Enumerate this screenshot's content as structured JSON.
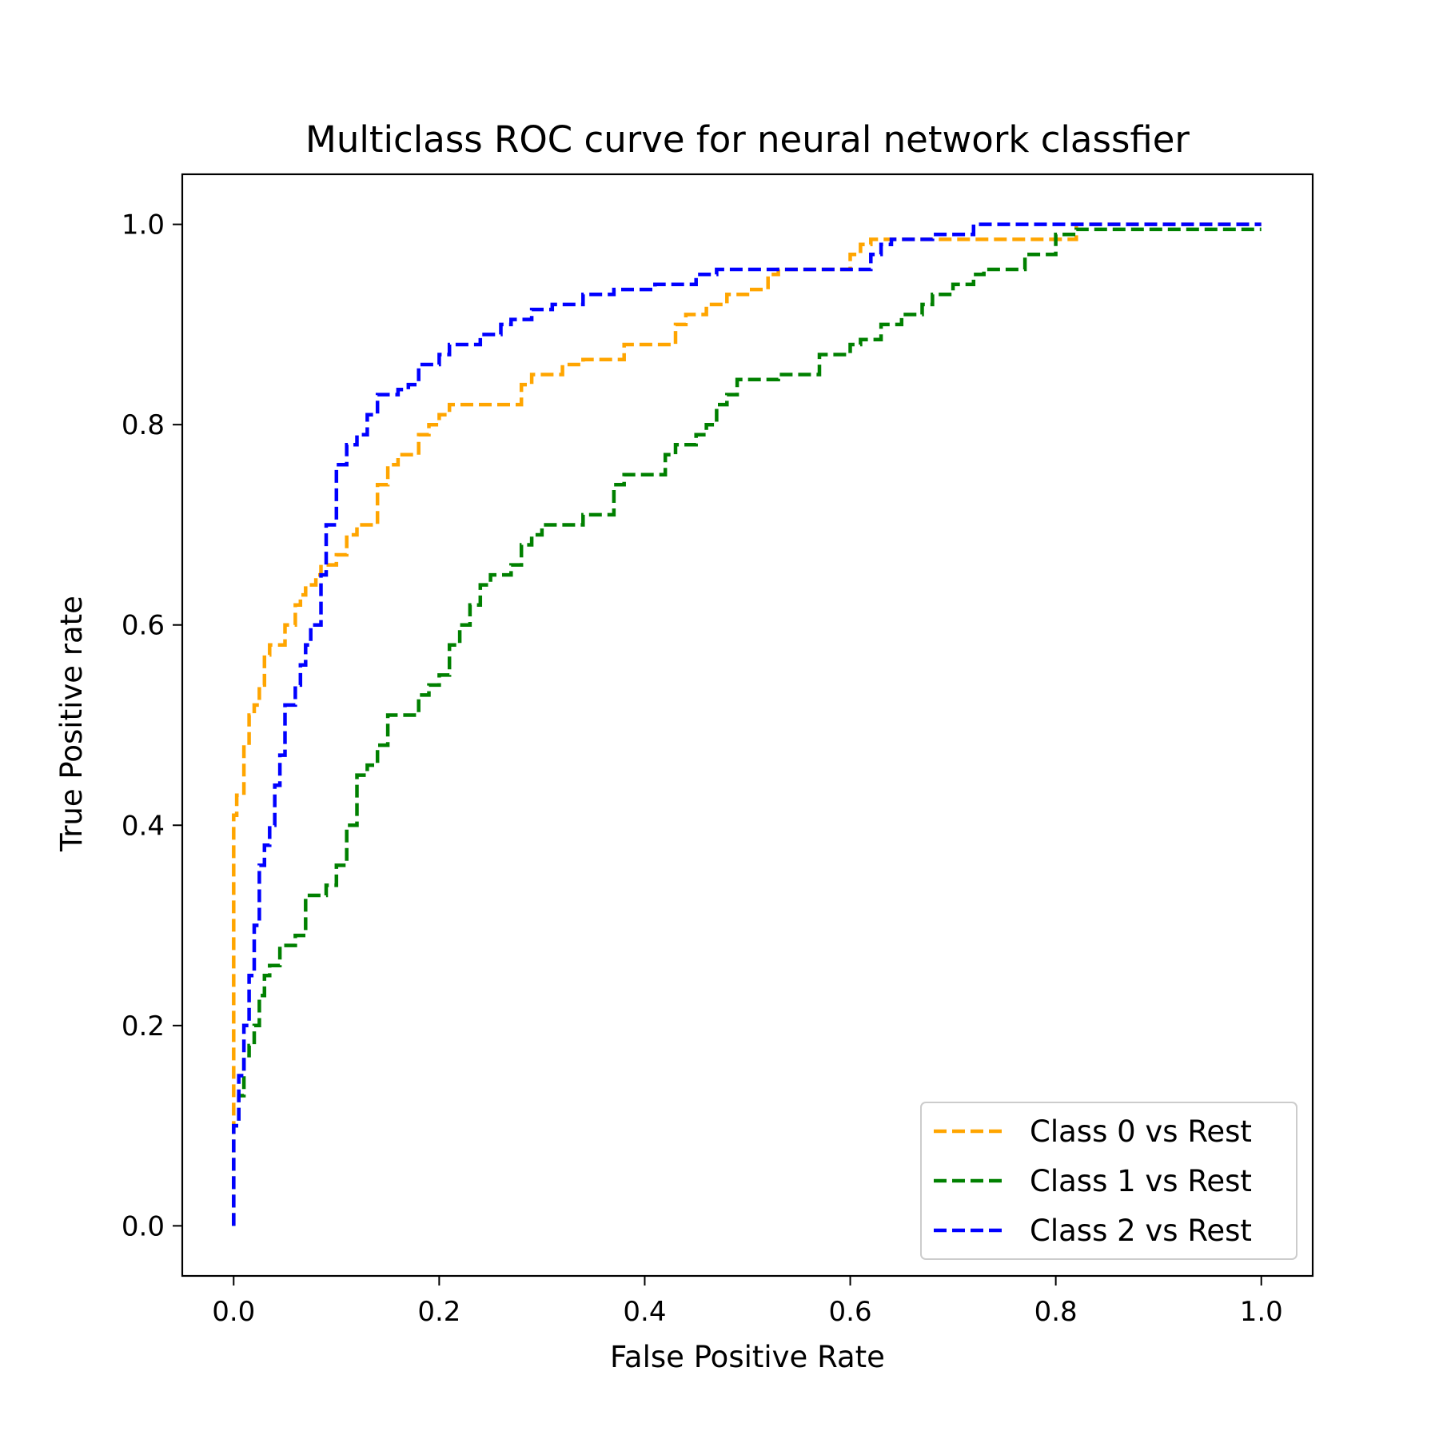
{
  "chart_data": {
    "type": "line",
    "title": "Multiclass ROC curve for neural network classfier",
    "xlabel": "False Positive Rate",
    "ylabel": "True Positive rate",
    "xlim": [
      -0.05,
      1.05
    ],
    "ylim": [
      -0.05,
      1.05
    ],
    "xticks": [
      0.0,
      0.2,
      0.4,
      0.6,
      0.8,
      1.0
    ],
    "xtick_labels": [
      "0.0",
      "0.2",
      "0.4",
      "0.6",
      "0.8",
      "1.0"
    ],
    "yticks": [
      0.0,
      0.2,
      0.4,
      0.6,
      0.8,
      1.0
    ],
    "ytick_labels": [
      "0.0",
      "0.2",
      "0.4",
      "0.6",
      "0.8",
      "1.0"
    ],
    "grid": false,
    "legend_position": "bottom-right",
    "line_style": "dashed",
    "series": [
      {
        "name": "Class 0 vs Rest",
        "color": "#ffa500",
        "x": [
          0.0,
          0.0,
          0.003,
          0.003,
          0.01,
          0.01,
          0.015,
          0.015,
          0.02,
          0.02,
          0.025,
          0.025,
          0.03,
          0.03,
          0.035,
          0.035,
          0.04,
          0.04,
          0.05,
          0.05,
          0.06,
          0.06,
          0.065,
          0.065,
          0.07,
          0.07,
          0.08,
          0.08,
          0.085,
          0.085,
          0.1,
          0.1,
          0.11,
          0.11,
          0.12,
          0.12,
          0.14,
          0.14,
          0.15,
          0.15,
          0.16,
          0.16,
          0.18,
          0.18,
          0.19,
          0.19,
          0.2,
          0.2,
          0.21,
          0.21,
          0.22,
          0.22,
          0.28,
          0.28,
          0.29,
          0.29,
          0.32,
          0.32,
          0.34,
          0.34,
          0.38,
          0.38,
          0.43,
          0.43,
          0.44,
          0.44,
          0.46,
          0.46,
          0.48,
          0.48,
          0.5,
          0.5,
          0.52,
          0.52,
          0.53,
          0.53,
          0.6,
          0.6,
          0.61,
          0.61,
          0.62,
          0.62,
          0.82,
          0.82,
          1.0
        ],
        "y": [
          0.0,
          0.41,
          0.41,
          0.43,
          0.43,
          0.48,
          0.48,
          0.51,
          0.51,
          0.52,
          0.52,
          0.54,
          0.54,
          0.57,
          0.57,
          0.58,
          0.58,
          0.58,
          0.58,
          0.6,
          0.6,
          0.62,
          0.62,
          0.63,
          0.63,
          0.64,
          0.64,
          0.65,
          0.65,
          0.66,
          0.66,
          0.67,
          0.67,
          0.69,
          0.69,
          0.7,
          0.7,
          0.74,
          0.74,
          0.76,
          0.76,
          0.77,
          0.77,
          0.79,
          0.79,
          0.8,
          0.8,
          0.81,
          0.81,
          0.82,
          0.82,
          0.82,
          0.82,
          0.84,
          0.84,
          0.85,
          0.85,
          0.86,
          0.86,
          0.865,
          0.865,
          0.88,
          0.88,
          0.9,
          0.9,
          0.91,
          0.91,
          0.92,
          0.92,
          0.93,
          0.93,
          0.935,
          0.935,
          0.95,
          0.95,
          0.955,
          0.955,
          0.97,
          0.97,
          0.98,
          0.98,
          0.985,
          0.985,
          1.0,
          1.0
        ]
      },
      {
        "name": "Class 1 vs Rest",
        "color": "#008000",
        "x": [
          0.0,
          0.0,
          0.005,
          0.005,
          0.01,
          0.01,
          0.015,
          0.015,
          0.02,
          0.02,
          0.025,
          0.025,
          0.03,
          0.03,
          0.035,
          0.035,
          0.045,
          0.045,
          0.06,
          0.06,
          0.07,
          0.07,
          0.09,
          0.09,
          0.1,
          0.1,
          0.11,
          0.11,
          0.12,
          0.12,
          0.13,
          0.13,
          0.14,
          0.14,
          0.15,
          0.15,
          0.18,
          0.18,
          0.19,
          0.19,
          0.2,
          0.2,
          0.21,
          0.21,
          0.22,
          0.22,
          0.23,
          0.23,
          0.24,
          0.24,
          0.25,
          0.25,
          0.27,
          0.27,
          0.28,
          0.28,
          0.29,
          0.29,
          0.3,
          0.3,
          0.34,
          0.34,
          0.37,
          0.37,
          0.38,
          0.38,
          0.42,
          0.42,
          0.43,
          0.43,
          0.45,
          0.45,
          0.46,
          0.46,
          0.47,
          0.47,
          0.48,
          0.48,
          0.49,
          0.49,
          0.53,
          0.53,
          0.57,
          0.57,
          0.6,
          0.6,
          0.61,
          0.61,
          0.63,
          0.63,
          0.65,
          0.65,
          0.67,
          0.67,
          0.68,
          0.68,
          0.7,
          0.7,
          0.72,
          0.72,
          0.73,
          0.73,
          0.77,
          0.77,
          0.8,
          0.8,
          0.82,
          0.82,
          1.0
        ],
        "y": [
          0.0,
          0.1,
          0.1,
          0.13,
          0.13,
          0.17,
          0.17,
          0.18,
          0.18,
          0.2,
          0.2,
          0.23,
          0.23,
          0.25,
          0.25,
          0.26,
          0.26,
          0.28,
          0.28,
          0.29,
          0.29,
          0.33,
          0.33,
          0.34,
          0.34,
          0.36,
          0.36,
          0.4,
          0.4,
          0.45,
          0.45,
          0.46,
          0.46,
          0.48,
          0.48,
          0.51,
          0.51,
          0.53,
          0.53,
          0.54,
          0.54,
          0.55,
          0.55,
          0.58,
          0.58,
          0.6,
          0.6,
          0.62,
          0.62,
          0.64,
          0.64,
          0.65,
          0.65,
          0.66,
          0.66,
          0.68,
          0.68,
          0.69,
          0.69,
          0.7,
          0.7,
          0.71,
          0.71,
          0.74,
          0.74,
          0.75,
          0.75,
          0.77,
          0.77,
          0.78,
          0.78,
          0.79,
          0.79,
          0.8,
          0.8,
          0.82,
          0.82,
          0.83,
          0.83,
          0.845,
          0.845,
          0.85,
          0.85,
          0.87,
          0.87,
          0.88,
          0.88,
          0.885,
          0.885,
          0.9,
          0.9,
          0.91,
          0.91,
          0.92,
          0.92,
          0.93,
          0.93,
          0.94,
          0.94,
          0.95,
          0.95,
          0.955,
          0.955,
          0.97,
          0.97,
          0.99,
          0.99,
          0.995,
          0.995
        ]
      },
      {
        "name": "Class 2 vs Rest",
        "color": "#0000ff",
        "x": [
          0.0,
          0.0,
          0.005,
          0.005,
          0.01,
          0.01,
          0.015,
          0.015,
          0.02,
          0.02,
          0.025,
          0.025,
          0.03,
          0.03,
          0.035,
          0.035,
          0.04,
          0.04,
          0.045,
          0.045,
          0.05,
          0.05,
          0.06,
          0.06,
          0.065,
          0.065,
          0.07,
          0.07,
          0.075,
          0.075,
          0.085,
          0.085,
          0.09,
          0.09,
          0.1,
          0.1,
          0.11,
          0.11,
          0.12,
          0.12,
          0.13,
          0.13,
          0.14,
          0.14,
          0.16,
          0.16,
          0.17,
          0.17,
          0.18,
          0.18,
          0.2,
          0.2,
          0.21,
          0.21,
          0.24,
          0.24,
          0.26,
          0.26,
          0.27,
          0.27,
          0.29,
          0.29,
          0.31,
          0.31,
          0.34,
          0.34,
          0.37,
          0.37,
          0.41,
          0.41,
          0.45,
          0.45,
          0.47,
          0.47,
          0.49,
          0.49,
          0.62,
          0.62,
          0.63,
          0.63,
          0.64,
          0.64,
          0.68,
          0.68,
          0.72,
          0.72,
          1.0
        ],
        "y": [
          0.0,
          0.1,
          0.1,
          0.15,
          0.15,
          0.2,
          0.2,
          0.25,
          0.25,
          0.3,
          0.3,
          0.36,
          0.36,
          0.38,
          0.38,
          0.4,
          0.4,
          0.44,
          0.44,
          0.47,
          0.47,
          0.52,
          0.52,
          0.54,
          0.54,
          0.56,
          0.56,
          0.58,
          0.58,
          0.6,
          0.6,
          0.65,
          0.65,
          0.7,
          0.7,
          0.76,
          0.76,
          0.78,
          0.78,
          0.79,
          0.79,
          0.81,
          0.81,
          0.83,
          0.83,
          0.835,
          0.835,
          0.84,
          0.84,
          0.86,
          0.86,
          0.87,
          0.87,
          0.88,
          0.88,
          0.89,
          0.89,
          0.9,
          0.9,
          0.905,
          0.905,
          0.915,
          0.915,
          0.92,
          0.92,
          0.93,
          0.93,
          0.935,
          0.935,
          0.94,
          0.94,
          0.95,
          0.95,
          0.955,
          0.955,
          0.955,
          0.955,
          0.97,
          0.97,
          0.98,
          0.98,
          0.985,
          0.985,
          0.99,
          0.99,
          1.0,
          1.0
        ]
      }
    ]
  }
}
